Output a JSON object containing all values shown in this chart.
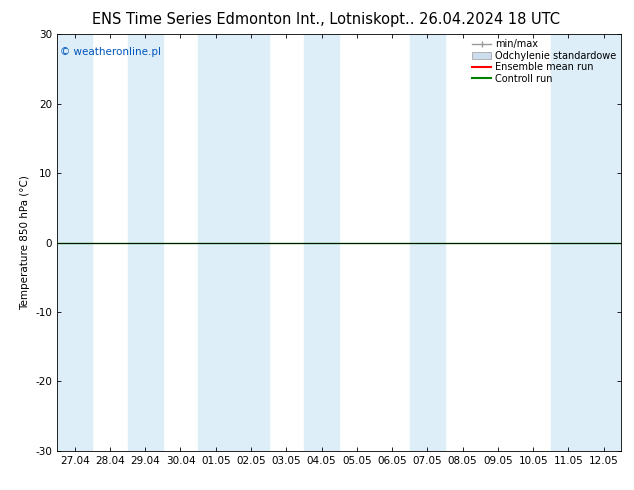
{
  "title_left": "ENS Time Series Edmonton Int., Lotnisko",
  "title_right": "pt.. 26.04.2024 18 UTC",
  "ylabel": "Temperature 850 hPa (°C)",
  "watermark": "© weatheronline.pl",
  "x_labels": [
    "27.04",
    "28.04",
    "29.04",
    "30.04",
    "01.05",
    "02.05",
    "03.05",
    "04.05",
    "05.05",
    "06.05",
    "07.05",
    "08.05",
    "09.05",
    "10.05",
    "11.05",
    "12.05"
  ],
  "ylim": [
    -30,
    30
  ],
  "yticks": [
    -30,
    -20,
    -10,
    0,
    10,
    20,
    30
  ],
  "n_xpoints": 16,
  "bg_color": "#FFFFFF",
  "band_color": "#DDEEF8",
  "shaded_columns": [
    0,
    2,
    4,
    5,
    7,
    10,
    14,
    15
  ],
  "zero_line_color": "#000000",
  "ctrl_line_color": "#008000",
  "axis_line_color": "#000000",
  "title_fontsize": 10.5,
  "tick_fontsize": 7.5,
  "watermark_color": "#0055BB",
  "watermark_fontsize": 7.5,
  "legend_fontsize": 7,
  "legend_items": [
    {
      "label": "min/max",
      "color": "#999999",
      "type": "errorbar"
    },
    {
      "label": "Odchylenie standardowe",
      "color": "#BBCCDD",
      "type": "box"
    },
    {
      "label": "Ensemble mean run",
      "color": "#FF0000",
      "type": "line"
    },
    {
      "label": "Controll run",
      "color": "#008000",
      "type": "line"
    }
  ]
}
